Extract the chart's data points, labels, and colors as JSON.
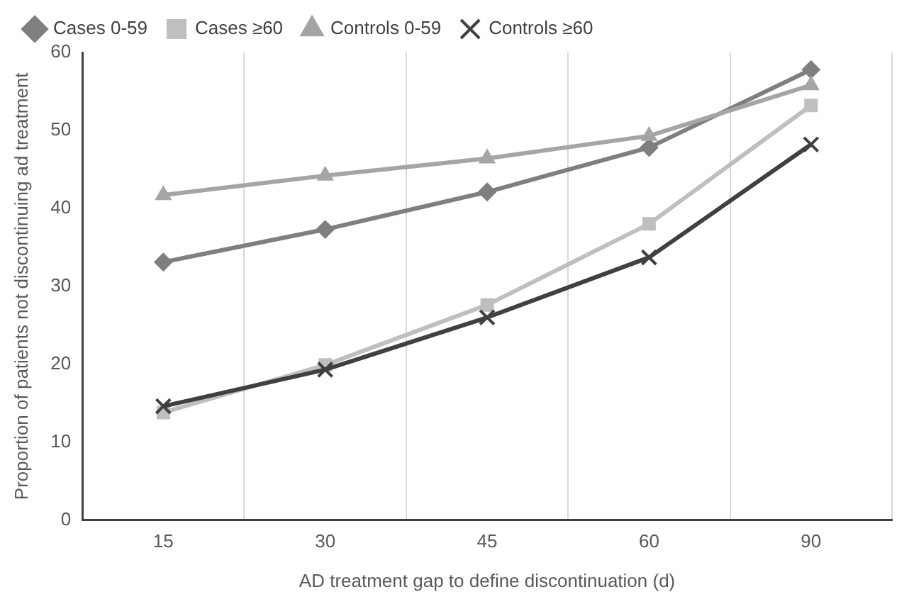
{
  "chart_data": {
    "type": "line",
    "xlabel": "AD treatment gap to define discontinuation (d)",
    "ylabel": "Proportion of patients not discontinuing ad treatment",
    "categories": [
      "15",
      "30",
      "45",
      "60",
      "90"
    ],
    "series": [
      {
        "name": "Cases 0-59",
        "color": "#7f7f7f",
        "marker": "diamond",
        "values": [
          33.1,
          37.3,
          42.1,
          47.8,
          57.8
        ]
      },
      {
        "name": "Cases ≥60",
        "color": "#bfbfbf",
        "marker": "square",
        "values": [
          13.8,
          19.9,
          27.6,
          38.0,
          53.2
        ]
      },
      {
        "name": "Controls 0-59",
        "color": "#a5a5a5",
        "marker": "triangle",
        "values": [
          41.7,
          44.2,
          46.4,
          49.3,
          55.8
        ]
      },
      {
        "name": "Controls ≥60",
        "color": "#404040",
        "marker": "cross",
        "values": [
          14.6,
          19.3,
          26.0,
          33.7,
          48.2
        ]
      }
    ],
    "ylim": [
      0,
      60
    ],
    "yticks": [
      0,
      10,
      20,
      30,
      40,
      50,
      60
    ],
    "grid": "x",
    "legend": "top",
    "line_style": "solid"
  }
}
